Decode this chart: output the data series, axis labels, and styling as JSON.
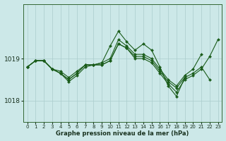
{
  "title": "Graphe pression niveau de la mer (hPa)",
  "bg_color": "#cce8e8",
  "grid_color": "#aacccc",
  "line_color": "#1a5c1a",
  "marker_color": "#1a5c1a",
  "ylim": [
    1017.5,
    1020.3
  ],
  "yticks": [
    1018,
    1019
  ],
  "xlim": [
    -0.5,
    23.5
  ],
  "xticks": [
    0,
    1,
    2,
    3,
    4,
    5,
    6,
    7,
    8,
    9,
    10,
    11,
    12,
    13,
    14,
    15,
    16,
    17,
    18,
    19,
    20,
    21,
    22,
    23
  ],
  "series": [
    {
      "x": [
        0,
        1,
        2,
        3,
        4,
        5,
        6,
        7,
        8,
        9,
        10,
        11,
        12,
        13,
        14,
        15,
        16,
        17,
        18,
        19
      ],
      "y": [
        1018.8,
        1018.95,
        1018.95,
        1018.75,
        1018.65,
        1018.5,
        1018.65,
        1018.85,
        1018.85,
        1018.9,
        1019.3,
        1019.65,
        1019.4,
        1019.2,
        1019.35,
        1019.2,
        1018.8,
        1018.35,
        1018.1,
        1018.55
      ]
    },
    {
      "x": [
        0,
        1,
        2,
        3,
        4,
        5,
        6,
        7,
        8,
        9,
        10,
        11,
        12,
        13,
        14,
        15,
        16,
        17,
        18,
        19,
        20,
        21
      ],
      "y": [
        1018.8,
        1018.95,
        1018.95,
        1018.75,
        1018.7,
        1018.55,
        1018.7,
        1018.85,
        1018.85,
        1018.9,
        1019.0,
        1019.45,
        1019.3,
        1019.1,
        1019.1,
        1019.0,
        1018.75,
        1018.5,
        1018.35,
        1018.6,
        1018.75,
        1019.1
      ]
    },
    {
      "x": [
        0,
        1,
        2,
        3,
        4,
        5,
        6,
        7,
        8,
        9,
        10,
        11,
        12,
        13,
        14,
        15,
        16,
        17,
        18,
        19,
        20,
        21,
        22
      ],
      "y": [
        1018.8,
        1018.95,
        1018.95,
        1018.75,
        1018.65,
        1018.5,
        1018.65,
        1018.85,
        1018.85,
        1018.85,
        1018.95,
        1019.35,
        1019.25,
        1019.05,
        1019.05,
        1018.95,
        1018.7,
        1018.45,
        1018.3,
        1018.55,
        1018.65,
        1018.8,
        1018.5
      ]
    },
    {
      "x": [
        0,
        1,
        2,
        3,
        4,
        5,
        6,
        7,
        8,
        9,
        10,
        11,
        12,
        13,
        14,
        15,
        16,
        17,
        18,
        19,
        20,
        21,
        22,
        23
      ],
      "y": [
        1018.8,
        1018.95,
        1018.95,
        1018.75,
        1018.65,
        1018.45,
        1018.6,
        1018.8,
        1018.85,
        1018.85,
        1018.95,
        1019.35,
        1019.25,
        1019.0,
        1019.0,
        1018.9,
        1018.65,
        1018.4,
        1018.2,
        1018.5,
        1018.6,
        1018.75,
        1019.05,
        1019.45
      ]
    }
  ],
  "xlabel_fontsize": 6.0,
  "ytick_fontsize": 6.5,
  "xtick_fontsize": 5.0,
  "linewidth": 0.8,
  "markersize": 2.2
}
